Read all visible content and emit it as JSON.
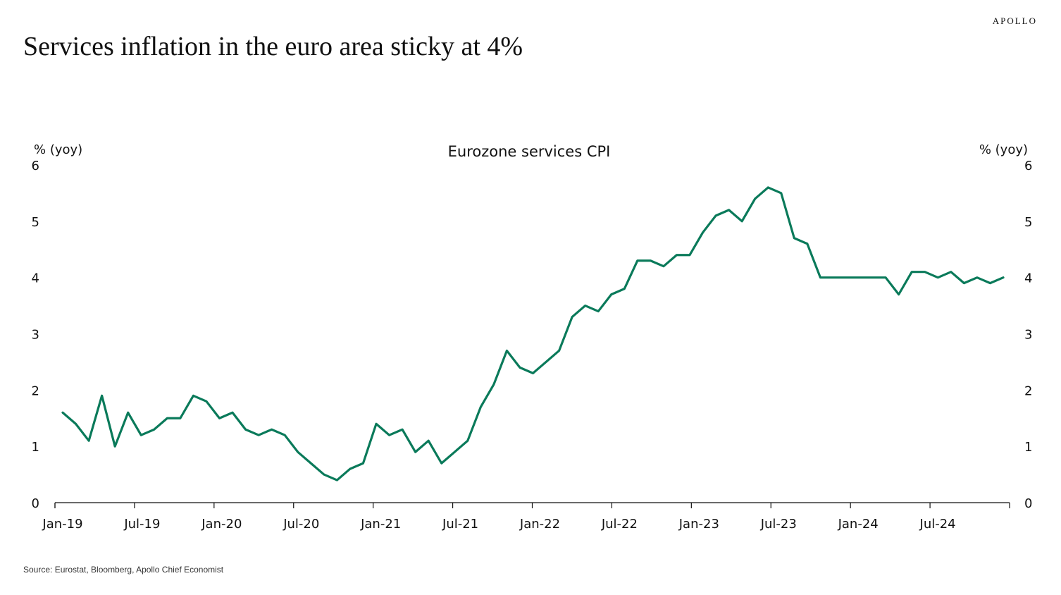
{
  "header": {
    "brand": "APOLLO",
    "title": "Services inflation in the euro area sticky at 4%"
  },
  "footer": {
    "source": "Source: Eurostat, Bloomberg, Apollo Chief Economist"
  },
  "chart_data": {
    "type": "line",
    "title": "Eurozone services CPI",
    "ylabel_left": "% (yoy)",
    "ylabel_right": "% (yoy)",
    "ylim": [
      0,
      6
    ],
    "yticks": [
      0,
      1,
      2,
      3,
      4,
      5,
      6
    ],
    "xticks": [
      "Jan-19",
      "Jul-19",
      "Jan-20",
      "Jul-20",
      "Jan-21",
      "Jul-21",
      "Jan-22",
      "Jul-22",
      "Jan-23",
      "Jul-23",
      "Jan-24",
      "Jul-24"
    ],
    "x_start": "Jan-19",
    "x_end": "Dec-24",
    "grid": false,
    "line_color": "#0a7a5a",
    "series": [
      {
        "values": [
          1.6,
          1.4,
          1.1,
          1.9,
          1.0,
          1.6,
          1.2,
          1.3,
          1.5,
          1.5,
          1.9,
          1.8,
          1.5,
          1.6,
          1.3,
          1.2,
          1.3,
          1.2,
          0.9,
          0.7,
          0.5,
          0.4,
          0.6,
          0.7,
          1.4,
          1.2,
          1.3,
          0.9,
          1.1,
          0.7,
          0.9,
          1.1,
          1.7,
          2.1,
          2.7,
          2.4,
          2.3,
          2.5,
          2.7,
          3.3,
          3.5,
          3.4,
          3.7,
          3.8,
          4.3,
          4.3,
          4.2,
          4.4,
          4.4,
          4.8,
          5.1,
          5.2,
          5.0,
          5.4,
          5.6,
          5.5,
          4.7,
          4.6,
          4.0,
          4.0,
          4.0,
          4.0,
          4.0,
          4.0,
          3.7,
          4.1,
          4.1,
          4.0,
          4.1,
          3.9,
          4.0,
          3.9,
          4.0
        ]
      }
    ]
  }
}
